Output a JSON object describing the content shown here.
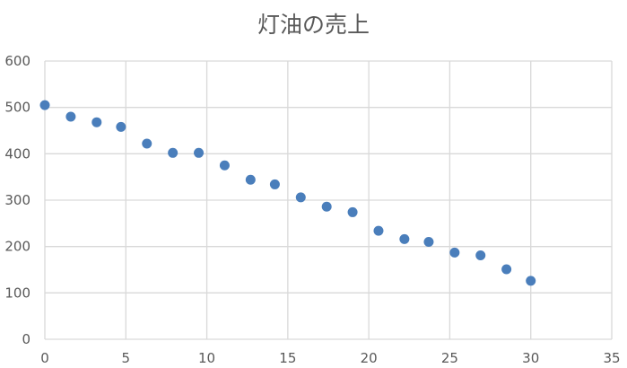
{
  "chart_data": {
    "type": "scatter",
    "title": "灯油の売上",
    "xlabel": "",
    "ylabel": "",
    "xlim": [
      0,
      35
    ],
    "ylim": [
      0,
      600
    ],
    "x_ticks": [
      0,
      5,
      10,
      15,
      20,
      25,
      30,
      35
    ],
    "y_ticks": [
      0,
      100,
      200,
      300,
      400,
      500,
      600
    ],
    "x_tick_labels": [
      "0",
      "5",
      "10",
      "15",
      "20",
      "25",
      "30",
      "35"
    ],
    "y_tick_labels": [
      "0",
      "100",
      "200",
      "300",
      "400",
      "500",
      "600"
    ],
    "grid": true,
    "legend": "none",
    "color": "#4a7ebb",
    "points": [
      {
        "x": 0.0,
        "y": 505
      },
      {
        "x": 1.6,
        "y": 480
      },
      {
        "x": 3.2,
        "y": 468
      },
      {
        "x": 4.7,
        "y": 458
      },
      {
        "x": 6.3,
        "y": 422
      },
      {
        "x": 7.9,
        "y": 402
      },
      {
        "x": 9.5,
        "y": 402
      },
      {
        "x": 11.1,
        "y": 375
      },
      {
        "x": 12.7,
        "y": 344
      },
      {
        "x": 14.2,
        "y": 334
      },
      {
        "x": 15.8,
        "y": 306
      },
      {
        "x": 17.4,
        "y": 286
      },
      {
        "x": 19.0,
        "y": 274
      },
      {
        "x": 20.6,
        "y": 234
      },
      {
        "x": 22.2,
        "y": 216
      },
      {
        "x": 23.7,
        "y": 210
      },
      {
        "x": 25.3,
        "y": 187
      },
      {
        "x": 26.9,
        "y": 181
      },
      {
        "x": 28.5,
        "y": 151
      },
      {
        "x": 30.0,
        "y": 126
      }
    ]
  }
}
